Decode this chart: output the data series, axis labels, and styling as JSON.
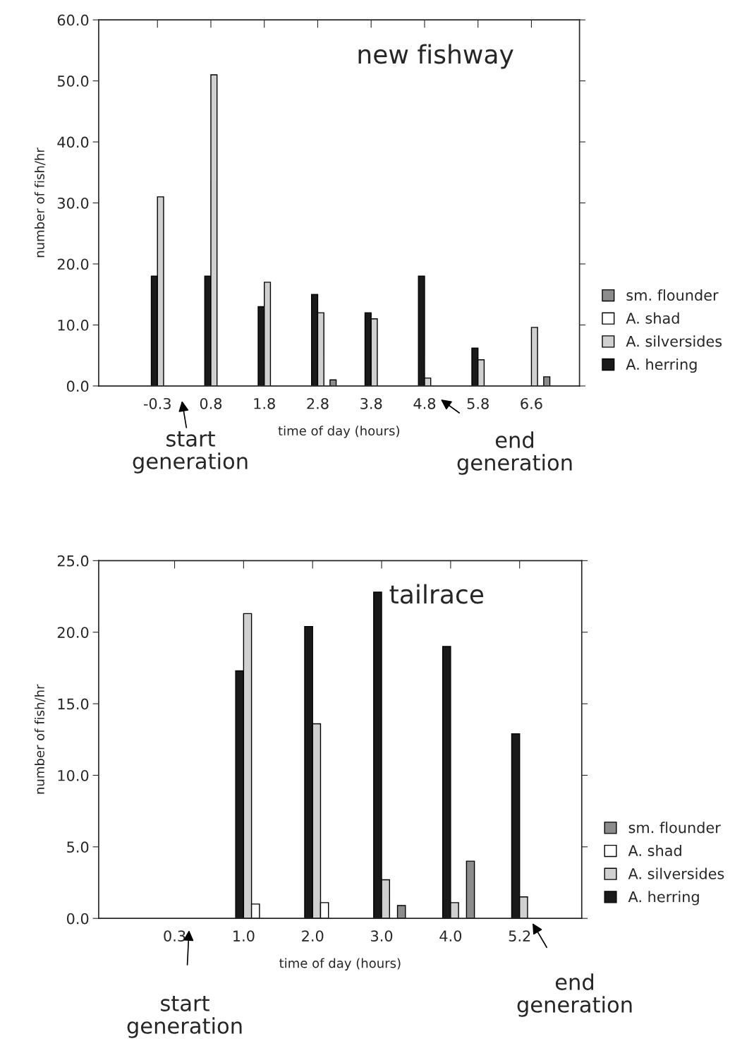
{
  "chart_data": [
    {
      "type": "bar",
      "title": "new fishway",
      "xlabel": "time of day (hours)",
      "ylabel": "number of fish/hr",
      "categories": [
        "-0.3",
        "0.8",
        "1.8",
        "2.8",
        "3.8",
        "4.8",
        "5.8",
        "6.6"
      ],
      "series": [
        {
          "name": "A. herring",
          "color": "#1a1a1a",
          "values": [
            18,
            18,
            13,
            15,
            12,
            18,
            6.2,
            0
          ]
        },
        {
          "name": "A. silversides",
          "color": "#d0d0d0",
          "values": [
            31,
            51,
            17,
            12,
            11,
            1.3,
            4.3,
            9.6
          ]
        },
        {
          "name": "A. shad",
          "color": "#ffffff",
          "values": [
            0,
            0,
            0,
            0,
            0,
            0,
            0,
            0
          ]
        },
        {
          "name": "sm. flounder",
          "color": "#8c8c8c",
          "values": [
            0,
            0,
            0,
            1.0,
            0,
            0,
            0,
            1.5
          ]
        }
      ],
      "ylim": [
        0,
        60
      ],
      "yticks": [
        {
          "value": 0,
          "label": "0.0"
        },
        {
          "value": 10,
          "label": "10.0"
        },
        {
          "value": 20,
          "label": "20.0"
        },
        {
          "value": 30,
          "label": "30.0"
        },
        {
          "value": 40,
          "label": "40.0"
        },
        {
          "value": 50,
          "label": "50.0"
        },
        {
          "value": 60,
          "label": "60.0"
        }
      ],
      "annotations": [
        "start\ngeneration",
        "end\ngeneration"
      ],
      "grid": false,
      "legend": "right"
    },
    {
      "type": "bar",
      "title": "tailrace",
      "xlabel": "time of day (hours)",
      "ylabel": "number of fish/hr",
      "categories": [
        "0.3",
        "1.0",
        "2.0",
        "3.0",
        "4.0",
        "5.2"
      ],
      "series": [
        {
          "name": "A. herring",
          "color": "#1a1a1a",
          "values": [
            0,
            17.3,
            20.4,
            22.8,
            19.0,
            12.9
          ]
        },
        {
          "name": "A. silversides",
          "color": "#d0d0d0",
          "values": [
            0,
            21.3,
            13.6,
            2.7,
            1.1,
            1.5
          ]
        },
        {
          "name": "A. shad",
          "color": "#ffffff",
          "values": [
            0,
            1.0,
            1.1,
            0,
            0,
            0
          ]
        },
        {
          "name": "sm. flounder",
          "color": "#8c8c8c",
          "values": [
            0,
            0,
            0,
            0.9,
            4.0,
            0
          ]
        }
      ],
      "ylim": [
        0,
        25
      ],
      "yticks": [
        {
          "value": 0,
          "label": "0.0"
        },
        {
          "value": 5,
          "label": "5.0"
        },
        {
          "value": 10,
          "label": "10.0"
        },
        {
          "value": 15,
          "label": "15.0"
        },
        {
          "value": 20,
          "label": "20.0"
        },
        {
          "value": 25,
          "label": "25.0"
        }
      ],
      "annotations": [
        "start\ngeneration",
        "end\ngeneration"
      ],
      "grid": false,
      "legend": "right"
    }
  ]
}
